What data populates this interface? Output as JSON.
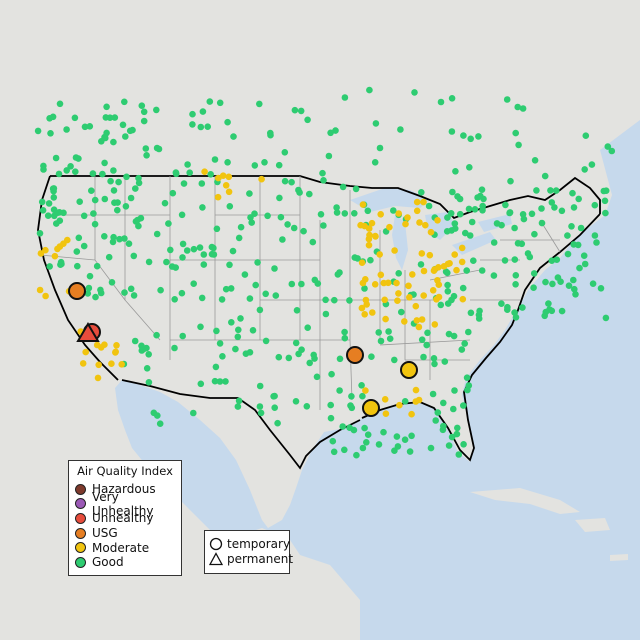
{
  "map": {
    "legend": {
      "title": "Air Quality Index",
      "categories": [
        {
          "label": "Hazardous",
          "color": "#7e3a2c"
        },
        {
          "label": "Very Unhealthy",
          "color": "#9b59b6"
        },
        {
          "label": "Unhealthy",
          "color": "#e74c3c"
        },
        {
          "label": "USG",
          "color": "#e67e22"
        },
        {
          "label": "Moderate",
          "color": "#f1c40f"
        },
        {
          "label": "Good",
          "color": "#2ecc71"
        }
      ]
    },
    "monitor_type_legend": {
      "temporary": "temporary",
      "permanent": "permanent"
    },
    "colors": {
      "water": "#c6d9ec",
      "land": "#e3e3e0",
      "border": "#000000",
      "state_lines": "#9a9a9a"
    }
  }
}
